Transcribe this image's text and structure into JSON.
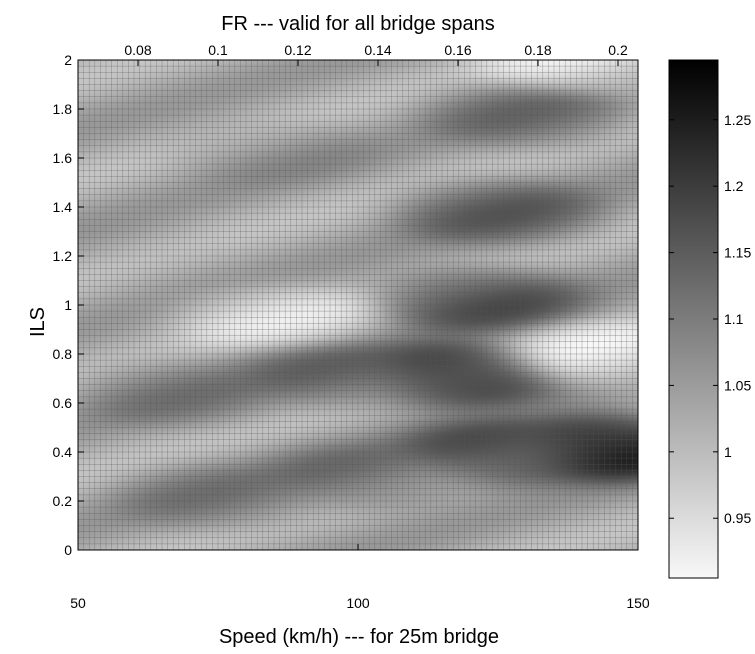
{
  "chart_data": {
    "type": "heatmap",
    "title": "FR --- valid for all bridge spans",
    "xlabel": "Speed (km/h) --- for 25m bridge",
    "ylabel": "ILS",
    "x_range": [
      50,
      150
    ],
    "y_range": [
      0,
      2
    ],
    "x_ticks": [
      "50",
      "100",
      "150"
    ],
    "y_ticks": [
      "0",
      "0.2",
      "0.4",
      "0.6",
      "0.8",
      "1",
      "1.2",
      "1.4",
      "1.6",
      "1.8",
      "2"
    ],
    "top_axis_range": [
      0.065,
      0.205
    ],
    "top_ticks": [
      "0.08",
      "0.1",
      "0.12",
      "0.14",
      "0.16",
      "0.18",
      "0.2"
    ],
    "colorbar": {
      "range": [
        0.905,
        1.295
      ],
      "ticks": [
        "0.95",
        "1",
        "1.05",
        "1.1",
        "1.15",
        "1.2",
        "1.25"
      ],
      "colormap": "gray-reversed"
    },
    "grid": true,
    "z_features": [
      {
        "x": 145,
        "y": 0.42,
        "z": 1.29
      },
      {
        "x": 125,
        "y": 0.4,
        "z": 1.2
      },
      {
        "x": 118,
        "y": 0.72,
        "z": 1.24
      },
      {
        "x": 122,
        "y": 1.02,
        "z": 1.18
      },
      {
        "x": 125,
        "y": 1.38,
        "z": 1.15
      },
      {
        "x": 95,
        "y": 0.72,
        "z": 1.13
      },
      {
        "x": 68,
        "y": 0.64,
        "z": 1.1
      },
      {
        "x": 100,
        "y": 0.3,
        "z": 1.12
      },
      {
        "x": 75,
        "y": 0.22,
        "z": 1.1
      },
      {
        "x": 130,
        "y": 1.78,
        "z": 1.12
      },
      {
        "x": 85,
        "y": 1.62,
        "z": 1.06
      },
      {
        "x": 60,
        "y": 1.2,
        "z": 1.03
      },
      {
        "x": 143,
        "y": 0.8,
        "z": 0.92
      },
      {
        "x": 85,
        "y": 0.95,
        "z": 0.94
      },
      {
        "x": 140,
        "y": 1.98,
        "z": 0.93
      }
    ],
    "colors": {
      "low": "#ffffff",
      "high": "#000000",
      "grid": "#555555"
    }
  }
}
